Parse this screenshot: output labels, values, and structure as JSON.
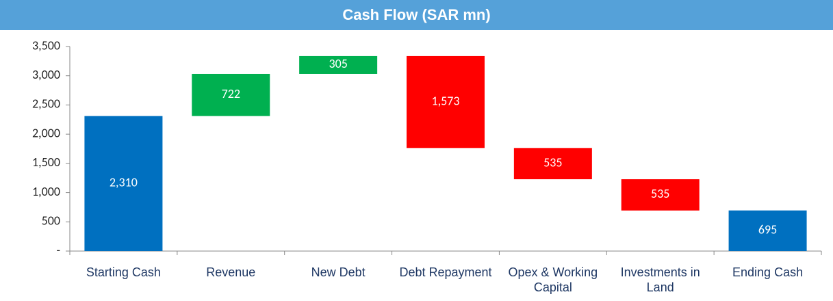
{
  "chart_data": {
    "type": "waterfall",
    "title": "Cash Flow (SAR mn)",
    "categories": [
      "Starting Cash",
      "Revenue",
      "New Debt",
      "Debt Repayment",
      "Opex & Working Capital",
      "Investments in Land",
      "Ending Cash"
    ],
    "values": [
      2310,
      722,
      305,
      1573,
      535,
      535,
      695
    ],
    "value_labels": [
      "2,310",
      "722",
      "305",
      "1,573",
      "535",
      "535",
      "695"
    ],
    "measures": [
      "total",
      "increase",
      "increase",
      "decrease",
      "decrease",
      "decrease",
      "total"
    ],
    "colors": {
      "total": "#0070c0",
      "increase": "#00b050",
      "decrease": "#ff0000"
    },
    "ylim": [
      0,
      3500
    ],
    "yticks": [
      {
        "value": 0,
        "label": "-"
      },
      500,
      {
        "value": 1000,
        "label": "1,000"
      },
      {
        "value": 1500,
        "label": "1,500"
      },
      {
        "value": 2000,
        "label": "2,000"
      },
      {
        "value": 2500,
        "label": "2,500"
      },
      {
        "value": 3000,
        "label": "3,000"
      },
      {
        "value": 3500,
        "label": "3,500"
      }
    ],
    "grid": false
  }
}
